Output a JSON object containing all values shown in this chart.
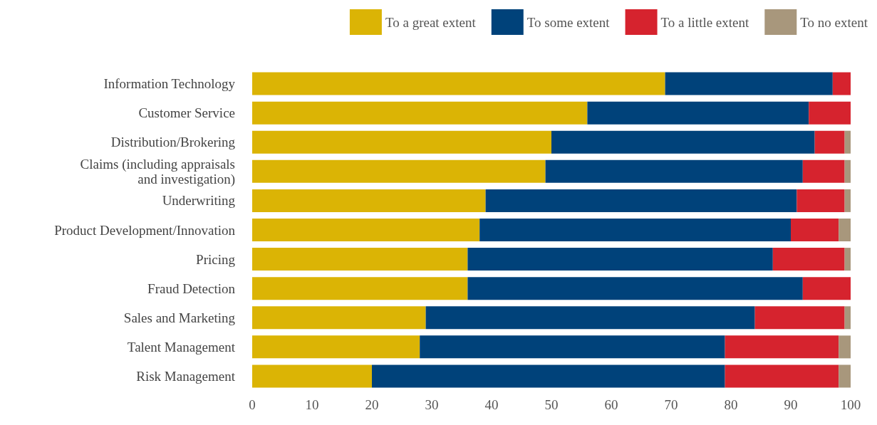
{
  "chart_data": {
    "type": "bar",
    "orientation": "horizontal",
    "stacked": true,
    "categories": [
      "Information Technology",
      "Customer Service",
      "Distribution/Brokering",
      "Claims (including appraisals\nand investigation)",
      "Underwriting",
      "Product Development/Innovation",
      "Pricing",
      "Fraud Detection",
      "Sales and Marketing",
      "Talent Management",
      "Risk Management"
    ],
    "series": [
      {
        "name": "To a great extent",
        "color": "#dbb405",
        "values": [
          69,
          56,
          50,
          49,
          39,
          38,
          36,
          36,
          29,
          28,
          20
        ]
      },
      {
        "name": "To some extent",
        "color": "#00427a",
        "values": [
          28,
          37,
          44,
          43,
          52,
          52,
          51,
          56,
          55,
          51,
          59
        ]
      },
      {
        "name": "To a little extent",
        "color": "#d6232e",
        "values": [
          3,
          7,
          5,
          7,
          8,
          8,
          12,
          8,
          15,
          19,
          19
        ]
      },
      {
        "name": "To no extent",
        "color": "#a8977c",
        "values": [
          0,
          0,
          1,
          1,
          1,
          2,
          1,
          0,
          1,
          2,
          2
        ]
      }
    ],
    "xlim": [
      0,
      100
    ],
    "xticks": [
      0,
      10,
      20,
      30,
      40,
      50,
      60,
      70,
      80,
      90,
      100
    ],
    "grid": false,
    "legend": "top right"
  }
}
